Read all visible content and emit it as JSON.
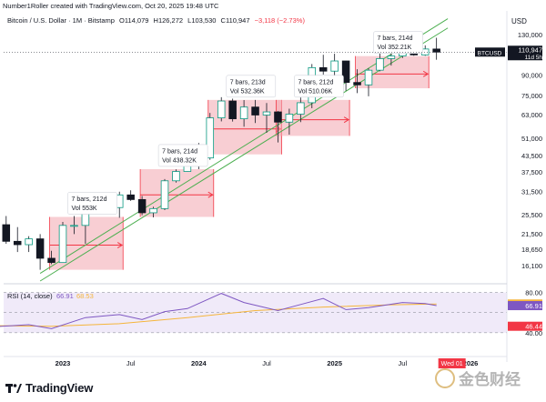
{
  "header": {
    "created_text": "Number1Roller created with TradingView.com, Oct 20, 2025 19:48 UTC",
    "symbol": "Bitcoin / U.S. Dollar · 1M · Bitstamp",
    "open": "O114,079",
    "high": "H126,272",
    "low": "L103,530",
    "close": "C110,947",
    "change": "−3,118 (−2.73%)",
    "currency": "USD"
  },
  "colors": {
    "up": "#089981",
    "down": "#131722",
    "box_fill": "#f2a6ae",
    "box_stroke": "#f23645",
    "channel": "#4caf50",
    "rsi": "#7e57c2",
    "rsi_ma": "#f5b53b",
    "rsi_band": "#e9e1f7"
  },
  "price_axis": {
    "ticks": [
      "130,000",
      "110,000",
      "90,000",
      "75,000",
      "63,000",
      "51,000",
      "43,500",
      "37,500",
      "31,500",
      "25,500",
      "21,500",
      "18,650",
      "16,100"
    ],
    "current_price": "110,947",
    "countdown": "11d 5h",
    "symbol_tag": "BTCUSD"
  },
  "rsi": {
    "label": "RSI (14, close)",
    "value": "66.91",
    "ma_value": "68.53",
    "ticks": [
      "80.00",
      "40.00"
    ],
    "value_tag": "66.91",
    "ma_tag": "68.53",
    "low_tag": "46.44"
  },
  "time_axis": {
    "labels": [
      "2023",
      "Jul",
      "2024",
      "Jul",
      "2025",
      "Jul",
      "2026"
    ],
    "current_label": "Wed 01"
  },
  "chart_data": [
    {
      "type": "candlestick",
      "title": "",
      "scale": "log",
      "x_unit": "month",
      "y_unit": "USD",
      "ylim": [
        14000,
        135000
      ],
      "candles": [
        {
          "t": "2022-07",
          "o": 19900,
          "h": 24600,
          "l": 18900,
          "c": 23300
        },
        {
          "t": "2022-08",
          "o": 23300,
          "h": 25200,
          "l": 19600,
          "c": 20050
        },
        {
          "t": "2022-09",
          "o": 20050,
          "h": 22800,
          "l": 18200,
          "c": 19450
        },
        {
          "t": "2022-10",
          "o": 19450,
          "h": 21000,
          "l": 18200,
          "c": 20500
        },
        {
          "t": "2022-11",
          "o": 20500,
          "h": 21400,
          "l": 15500,
          "c": 17200
        },
        {
          "t": "2022-12",
          "o": 17200,
          "h": 18400,
          "l": 16300,
          "c": 16550
        },
        {
          "t": "2023-01",
          "o": 16550,
          "h": 23900,
          "l": 16500,
          "c": 23150
        },
        {
          "t": "2023-02",
          "o": 23150,
          "h": 25200,
          "l": 21400,
          "c": 23150
        },
        {
          "t": "2023-03",
          "o": 23150,
          "h": 29200,
          "l": 19600,
          "c": 28500
        },
        {
          "t": "2023-04",
          "o": 28500,
          "h": 31000,
          "l": 26900,
          "c": 29250
        },
        {
          "t": "2023-05",
          "o": 29250,
          "h": 29800,
          "l": 25900,
          "c": 27200
        },
        {
          "t": "2023-06",
          "o": 27200,
          "h": 31400,
          "l": 24800,
          "c": 30500
        },
        {
          "t": "2023-07",
          "o": 30500,
          "h": 31800,
          "l": 28900,
          "c": 29250
        },
        {
          "t": "2023-08",
          "o": 29250,
          "h": 30200,
          "l": 25400,
          "c": 25950
        },
        {
          "t": "2023-09",
          "o": 25950,
          "h": 27400,
          "l": 24900,
          "c": 26950
        },
        {
          "t": "2023-10",
          "o": 26950,
          "h": 35200,
          "l": 26600,
          "c": 34650
        },
        {
          "t": "2023-11",
          "o": 34650,
          "h": 38400,
          "l": 34100,
          "c": 37700
        },
        {
          "t": "2023-12",
          "o": 37700,
          "h": 44800,
          "l": 37600,
          "c": 42300
        },
        {
          "t": "2024-01",
          "o": 42300,
          "h": 48800,
          "l": 38500,
          "c": 42600
        },
        {
          "t": "2024-02",
          "o": 42600,
          "h": 64000,
          "l": 41900,
          "c": 61200
        },
        {
          "t": "2024-03",
          "o": 61200,
          "h": 73800,
          "l": 59300,
          "c": 71300
        },
        {
          "t": "2024-04",
          "o": 71300,
          "h": 72800,
          "l": 59200,
          "c": 60700
        },
        {
          "t": "2024-05",
          "o": 60700,
          "h": 71900,
          "l": 56500,
          "c": 67500
        },
        {
          "t": "2024-06",
          "o": 67500,
          "h": 72000,
          "l": 58400,
          "c": 62800
        },
        {
          "t": "2024-07",
          "o": 62800,
          "h": 70000,
          "l": 53500,
          "c": 64600
        },
        {
          "t": "2024-08",
          "o": 64600,
          "h": 65100,
          "l": 49000,
          "c": 58900
        },
        {
          "t": "2024-09",
          "o": 58900,
          "h": 66500,
          "l": 52600,
          "c": 63300
        },
        {
          "t": "2024-10",
          "o": 63300,
          "h": 73600,
          "l": 58900,
          "c": 70200
        },
        {
          "t": "2024-11",
          "o": 70200,
          "h": 99600,
          "l": 66800,
          "c": 96400
        },
        {
          "t": "2024-12",
          "o": 96400,
          "h": 108300,
          "l": 90500,
          "c": 93400
        },
        {
          "t": "2025-01",
          "o": 93400,
          "h": 109300,
          "l": 89200,
          "c": 102400
        },
        {
          "t": "2025-02",
          "o": 102400,
          "h": 102500,
          "l": 78200,
          "c": 84300
        },
        {
          "t": "2025-03",
          "o": 84300,
          "h": 95000,
          "l": 76600,
          "c": 82500
        },
        {
          "t": "2025-04",
          "o": 82500,
          "h": 95800,
          "l": 74400,
          "c": 94200
        },
        {
          "t": "2025-05",
          "o": 94200,
          "h": 111900,
          "l": 93300,
          "c": 104600
        },
        {
          "t": "2025-06",
          "o": 104600,
          "h": 110400,
          "l": 98200,
          "c": 107100
        },
        {
          "t": "2025-07",
          "o": 107100,
          "h": 123200,
          "l": 105200,
          "c": 115700
        },
        {
          "t": "2025-08",
          "o": 115700,
          "h": 124500,
          "l": 107300,
          "c": 108200
        },
        {
          "t": "2025-09",
          "o": 108200,
          "h": 117900,
          "l": 107300,
          "c": 114100
        },
        {
          "t": "2025-10",
          "o": 114079,
          "h": 126272,
          "l": 103530,
          "c": 110947
        }
      ],
      "annotations": [
        {
          "bars_text": "7 bars, 212d",
          "vol_text": "Vol 553K",
          "start": "2022-12",
          "end": "2023-06",
          "low": 15500,
          "high": 25000
        },
        {
          "bars_text": "7 bars, 214d",
          "vol_text": "Vol 438.32K",
          "start": "2023-08",
          "end": "2024-02",
          "low": 25000,
          "high": 38500
        },
        {
          "bars_text": "7 bars, 213d",
          "vol_text": "Vol 532.36K",
          "start": "2024-02",
          "end": "2024-08",
          "low": 44000,
          "high": 72000
        },
        {
          "bars_text": "7 bars, 212d",
          "vol_text": "Vol 510.06K",
          "start": "2024-08",
          "end": "2025-02",
          "low": 52000,
          "high": 72000
        },
        {
          "bars_text": "7 bars, 214d",
          "vol_text": "Vol 352.21K",
          "start": "2025-03",
          "end": "2025-09",
          "low": 80000,
          "high": 107000
        }
      ],
      "channel_lines": [
        {
          "from": {
            "t": "2022-11",
            "y": 15000
          },
          "to": {
            "t": "2025-11",
            "y": 150000
          }
        },
        {
          "from": {
            "t": "2022-11",
            "y": 14000
          },
          "to": {
            "t": "2025-11",
            "y": 138000
          }
        }
      ]
    },
    {
      "type": "line",
      "title": "RSI (14, close)",
      "ylim": [
        20,
        85
      ],
      "levels": [
        80,
        40
      ],
      "series": [
        {
          "name": "RSI",
          "t": [
            "2022-07",
            "2022-10",
            "2022-12",
            "2023-03",
            "2023-06",
            "2023-08",
            "2023-10",
            "2023-12",
            "2024-03",
            "2024-05",
            "2024-08",
            "2024-10",
            "2024-12",
            "2025-02",
            "2025-04",
            "2025-07",
            "2025-09",
            "2025-10"
          ],
          "values": [
            46,
            48,
            44,
            55,
            58,
            53,
            61,
            64,
            79,
            70,
            62,
            68,
            74,
            63,
            65,
            70,
            69,
            66.91
          ]
        },
        {
          "name": "MA",
          "t": [
            "2022-07",
            "2022-12",
            "2023-06",
            "2023-12",
            "2024-06",
            "2024-12",
            "2025-06",
            "2025-10"
          ],
          "values": [
            47,
            46.4,
            49,
            55,
            62,
            65.5,
            67.8,
            68.53
          ]
        }
      ]
    }
  ]
}
